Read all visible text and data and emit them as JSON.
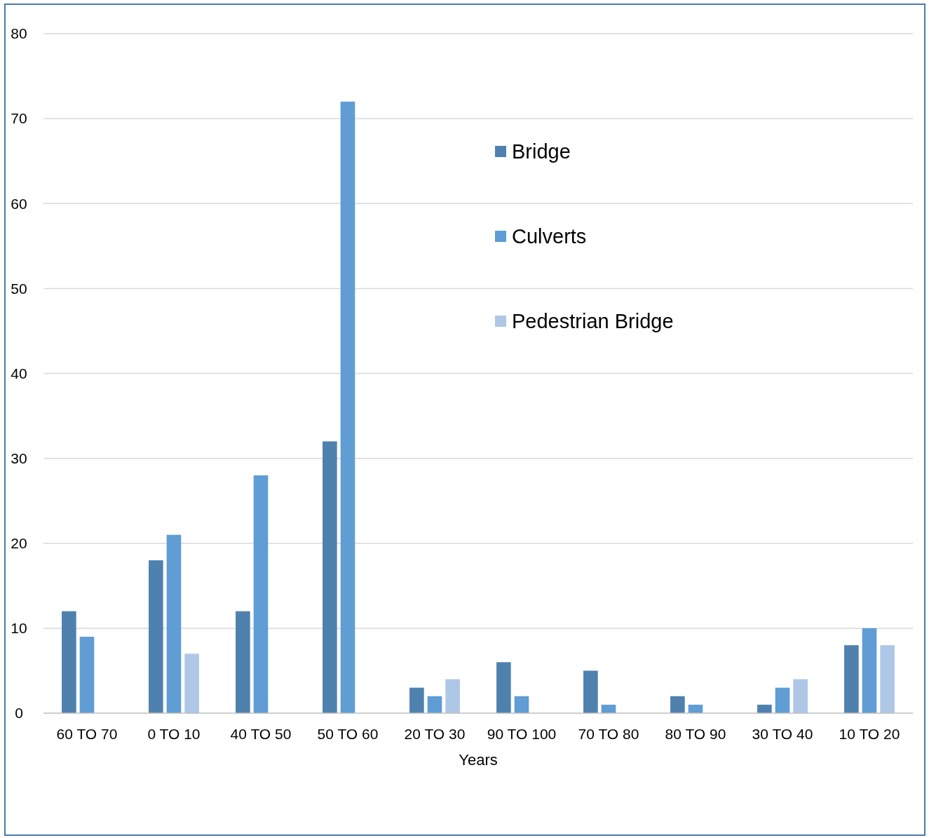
{
  "chart_data": {
    "type": "bar",
    "xlabel": "Years",
    "categories": [
      "60 TO 70",
      "0 TO 10",
      "40 TO 50",
      "50 TO 60",
      "20 TO 30",
      "90 TO 100",
      "70 TO 80",
      "80 TO 90",
      "30 TO 40",
      "10 TO 20"
    ],
    "series": [
      {
        "name": "Bridge",
        "color": "#4f81af",
        "values": [
          12,
          18,
          12,
          32,
          3,
          6,
          5,
          2,
          1,
          8
        ]
      },
      {
        "name": "Culverts",
        "color": "#5f9dd4",
        "values": [
          9,
          21,
          28,
          72,
          2,
          2,
          1,
          1,
          3,
          10
        ]
      },
      {
        "name": "Pedestrian Bridge",
        "color": "#aec7e6",
        "values": [
          0,
          7,
          0,
          0,
          4,
          0,
          0,
          0,
          4,
          8
        ]
      }
    ],
    "ylim": [
      0,
      80
    ],
    "yticks": [
      0,
      10,
      20,
      30,
      40,
      50,
      60,
      70,
      80
    ],
    "grid": "y",
    "legend": "top"
  }
}
